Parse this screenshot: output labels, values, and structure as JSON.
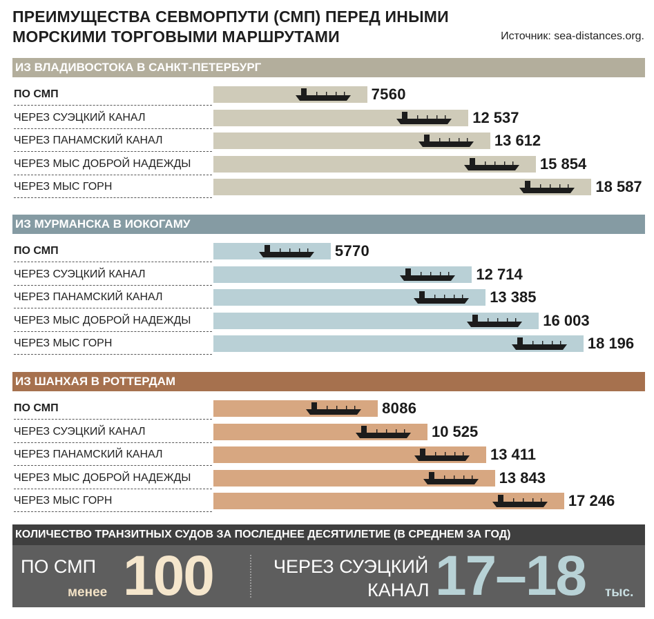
{
  "header": {
    "title_line1": "ПРЕИМУЩЕСТВА СЕВМОРПУТИ (СМП) ПЕРЕД ИНЫМИ",
    "title_line2": "МОРСКИМИ ТОРГОВЫМИ МАРШРУТАМИ",
    "source": "Источник: sea-distances.org."
  },
  "colors": {
    "ship": "#1c1c1c",
    "bottom_header": "#3f3f3f",
    "bottom_panel": "#5e5e5e"
  },
  "chart_data": [
    {
      "type": "bar",
      "title": "ИЗ ВЛАДИВОСТОКА В САНКТ-ПЕТЕРБУРГ",
      "header_color": "#b3ae9c",
      "bar_color": "#cfcbb9",
      "categories": [
        "ПО СМП",
        "ЧЕРЕЗ СУЭЦКИЙ КАНАЛ",
        "ЧЕРЕЗ ПАНАМСКИЙ КАНАЛ",
        "ЧЕРЕЗ МЫС ДОБРОЙ НАДЕЖДЫ",
        "ЧЕРЕЗ МЫС ГОРН"
      ],
      "values": [
        7560,
        12537,
        13612,
        15854,
        18587
      ],
      "value_labels": [
        "7560",
        "12 537",
        "13 612",
        "15 854",
        "18 587"
      ]
    },
    {
      "type": "bar",
      "title": "ИЗ МУРМАНСКА В ИОКОГАМУ",
      "header_color": "#859ba3",
      "bar_color": "#b9d0d6",
      "categories": [
        "ПО СМП",
        "ЧЕРЕЗ СУЭЦКИЙ КАНАЛ",
        "ЧЕРЕЗ ПАНАМСКИЙ КАНАЛ",
        "ЧЕРЕЗ МЫС ДОБРОЙ НАДЕЖДЫ",
        "ЧЕРЕЗ МЫС ГОРН"
      ],
      "values": [
        5770,
        12714,
        13385,
        16003,
        18196
      ],
      "value_labels": [
        "5770",
        "12 714",
        "13 385",
        "16 003",
        "18 196"
      ]
    },
    {
      "type": "bar",
      "title": "ИЗ ШАНХАЯ В РОТТЕРДАМ",
      "header_color": "#a6714e",
      "bar_color": "#d7a781",
      "categories": [
        "ПО СМП",
        "ЧЕРЕЗ СУЭЦКИЙ КАНАЛ",
        "ЧЕРЕЗ ПАНАМСКИЙ КАНАЛ",
        "ЧЕРЕЗ МЫС ДОБРОЙ НАДЕЖДЫ",
        "ЧЕРЕЗ МЫС ГОРН"
      ],
      "values": [
        8086,
        10525,
        13411,
        13843,
        17246
      ],
      "value_labels": [
        "8086",
        "10 525",
        "13 411",
        "13 843",
        "17 246"
      ]
    }
  ],
  "bottom": {
    "header": "КОЛИЧЕСТВО ТРАНЗИТНЫХ СУДОВ ЗА ПОСЛЕДНЕЕ ДЕСЯТИЛЕТИЕ (В СРЕДНЕМ ЗА ГОД)",
    "nsr_label": "ПО СМП",
    "nsr_less": "менее",
    "nsr_value": "100",
    "suez_label_line1": "ЧЕРЕЗ СУЭЦКИЙ",
    "suez_label_line2": "КАНАЛ",
    "suez_value": "17–18",
    "suez_unit": "тыс."
  }
}
